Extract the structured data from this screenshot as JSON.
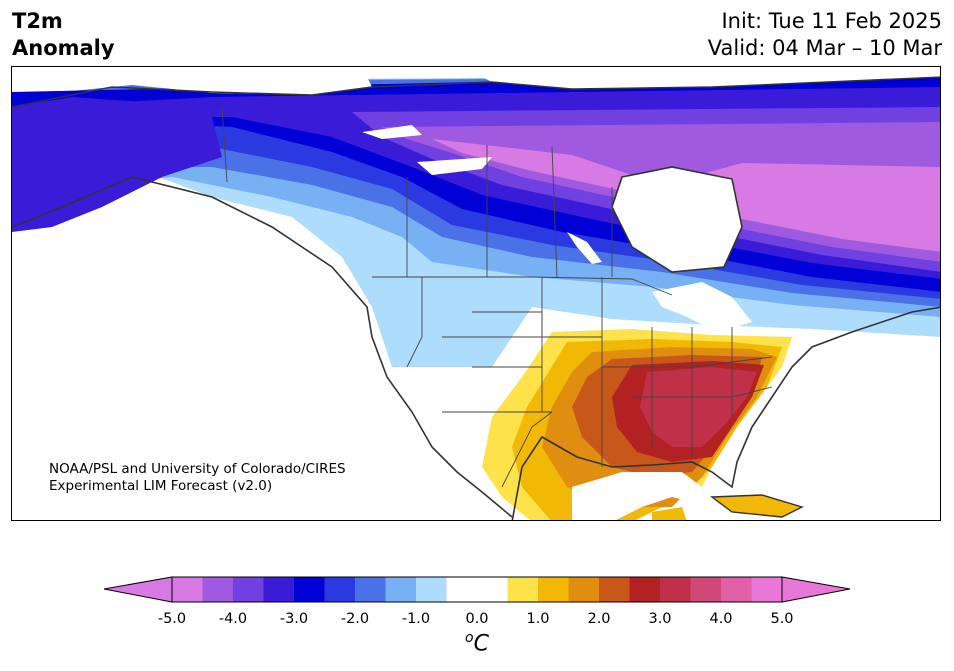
{
  "header": {
    "title_line1": "T2m",
    "title_line2": "Anomaly",
    "init": "Init: Tue 11 Feb 2025",
    "valid": "Valid: 04 Mar – 10 Mar"
  },
  "credit": {
    "line1": "NOAA/PSL and University of Colorado/CIRES",
    "line2": "Experimental LIM Forecast (v2.0)"
  },
  "colorbar": {
    "unit_base": "C",
    "unit_sup": "o",
    "tick_labels": [
      "-5.0",
      "-4.0",
      "-3.0",
      "-2.0",
      "-1.0",
      "0.0",
      "1.0",
      "2.0",
      "3.0",
      "4.0",
      "5.0"
    ],
    "colors": [
      "#d77ae3",
      "#a05ae0",
      "#7040e0",
      "#3a1cd8",
      "#0000d6",
      "#2a3ae0",
      "#4a72e6",
      "#78b0f4",
      "#aedcfc",
      "#ffffff",
      "#ffffff",
      "#fde24a",
      "#f2b806",
      "#e08e10",
      "#c8581a",
      "#b22222",
      "#c03048",
      "#d04878",
      "#e060a8",
      "#e878d8"
    ],
    "under_color": "#d77ae3",
    "over_color": "#e878d8"
  },
  "map": {
    "region": "North America",
    "features": [
      "coastlines",
      "country-borders",
      "state-province-borders",
      "lakes"
    ],
    "anomaly_summary": [
      {
        "region": "Northern Canada / Hudson Bay",
        "anomaly_c": -5.0
      },
      {
        "region": "Alaska",
        "anomaly_c": -3.0
      },
      {
        "region": "Western US",
        "anomaly_c": -1.0
      },
      {
        "region": "Southeast US",
        "anomaly_c": 3.0
      },
      {
        "region": "Cuba / Caribbean",
        "anomaly_c": 1.5
      }
    ]
  }
}
